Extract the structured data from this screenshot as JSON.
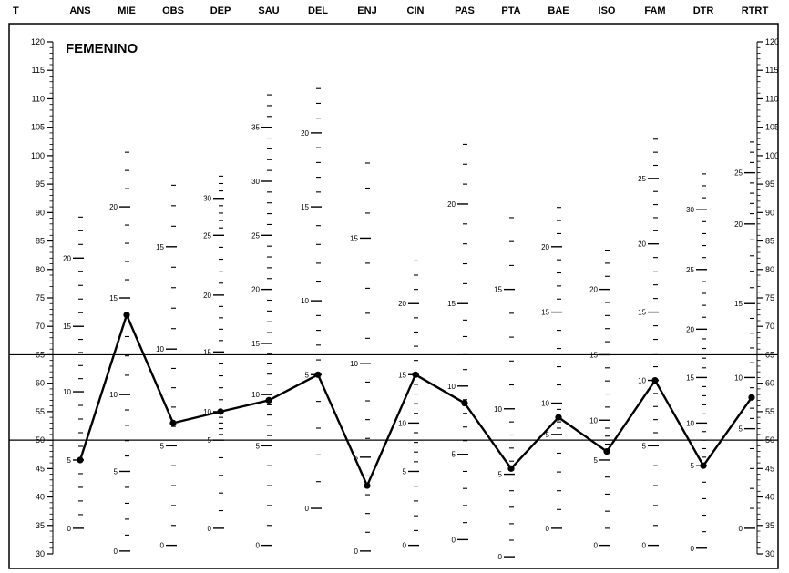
{
  "chart_data": {
    "type": "line",
    "title": "FEMENINO",
    "axis_label_left": "T",
    "axis_label_right": "T",
    "t_axis": {
      "min": 30,
      "max": 120,
      "labels": [
        30,
        35,
        40,
        45,
        50,
        55,
        60,
        65,
        70,
        75,
        80,
        85,
        90,
        95,
        100,
        105,
        110,
        115,
        120
      ]
    },
    "reference_lines": [
      50,
      65
    ],
    "categories": [
      "ANS",
      "MIE",
      "OBS",
      "DEP",
      "SAU",
      "DEL",
      "ENJ",
      "CIN",
      "PAS",
      "PTA",
      "BAE",
      "ISO",
      "FAM",
      "DTR",
      "RTR"
    ],
    "series": [
      {
        "values": [
          46.5,
          72,
          53,
          55,
          57,
          61.5,
          42,
          61.5,
          56.5,
          45,
          54,
          48,
          60.5,
          45.5,
          57.5
        ]
      }
    ],
    "raw_scales": [
      {
        "labels": [
          {
            "value": "0",
            "t": 34.5
          },
          {
            "value": "5",
            "t": 46.5
          },
          {
            "value": "10",
            "t": 58.5
          },
          {
            "value": "15",
            "t": 70
          },
          {
            "value": "20",
            "t": 82
          }
        ]
      },
      {
        "labels": [
          {
            "value": "0",
            "t": 30.5
          },
          {
            "value": "5",
            "t": 44.5
          },
          {
            "value": "10",
            "t": 58
          },
          {
            "value": "15",
            "t": 75
          },
          {
            "value": "20",
            "t": 91
          }
        ]
      },
      {
        "labels": [
          {
            "value": "0",
            "t": 31.5
          },
          {
            "value": "5",
            "t": 49
          },
          {
            "value": "10",
            "t": 66
          },
          {
            "value": "15",
            "t": 84
          }
        ]
      },
      {
        "labels": [
          {
            "value": "0",
            "t": 34.5
          },
          {
            "value": "5",
            "t": 50
          },
          {
            "value": "10",
            "t": 55
          },
          {
            "value": "15",
            "t": 65.5
          },
          {
            "value": "20",
            "t": 75.5
          },
          {
            "value": "25",
            "t": 86
          },
          {
            "value": "30",
            "t": 92.5
          }
        ]
      },
      {
        "labels": [
          {
            "value": "0",
            "t": 31.5
          },
          {
            "value": "5",
            "t": 49
          },
          {
            "value": "10",
            "t": 58
          },
          {
            "value": "15",
            "t": 67
          },
          {
            "value": "20",
            "t": 76.5
          },
          {
            "value": "25",
            "t": 86
          },
          {
            "value": "30",
            "t": 95.5
          },
          {
            "value": "35",
            "t": 105
          }
        ]
      },
      {
        "labels": [
          {
            "value": "0",
            "t": 38
          },
          {
            "value": "5",
            "t": 61.5
          },
          {
            "value": "10",
            "t": 74.5
          },
          {
            "value": "15",
            "t": 91
          },
          {
            "value": "20",
            "t": 104
          }
        ]
      },
      {
        "labels": [
          {
            "value": "0",
            "t": 30.5
          },
          {
            "value": "5",
            "t": 47
          },
          {
            "value": "10",
            "t": 63.5
          },
          {
            "value": "15",
            "t": 85.5
          }
        ]
      },
      {
        "labels": [
          {
            "value": "0",
            "t": 31.5
          },
          {
            "value": "5",
            "t": 44.5
          },
          {
            "value": "10",
            "t": 53
          },
          {
            "value": "15",
            "t": 61.5
          },
          {
            "value": "20",
            "t": 74
          }
        ]
      },
      {
        "labels": [
          {
            "value": "0",
            "t": 32.5
          },
          {
            "value": "5",
            "t": 47.5
          },
          {
            "value": "10",
            "t": 59.5
          },
          {
            "value": "15",
            "t": 74
          },
          {
            "value": "20",
            "t": 91.5
          }
        ]
      },
      {
        "labels": [
          {
            "value": "0",
            "t": 29.5
          },
          {
            "value": "5",
            "t": 44
          },
          {
            "value": "10",
            "t": 55.5
          },
          {
            "value": "15",
            "t": 76.5
          }
        ]
      },
      {
        "labels": [
          {
            "value": "0",
            "t": 34.5
          },
          {
            "value": "5",
            "t": 51
          },
          {
            "value": "10",
            "t": 56.5
          },
          {
            "value": "15",
            "t": 72.5
          },
          {
            "value": "20",
            "t": 84
          }
        ]
      },
      {
        "labels": [
          {
            "value": "0",
            "t": 31.5
          },
          {
            "value": "5",
            "t": 46.5
          },
          {
            "value": "10",
            "t": 53.5
          },
          {
            "value": "15",
            "t": 65
          },
          {
            "value": "20",
            "t": 76.5
          }
        ]
      },
      {
        "labels": [
          {
            "value": "0",
            "t": 31.5
          },
          {
            "value": "5",
            "t": 49
          },
          {
            "value": "10",
            "t": 60.5
          },
          {
            "value": "15",
            "t": 72.5
          },
          {
            "value": "20",
            "t": 84.5
          },
          {
            "value": "25",
            "t": 96
          }
        ]
      },
      {
        "labels": [
          {
            "value": "0",
            "t": 31
          },
          {
            "value": "5",
            "t": 45.5
          },
          {
            "value": "10",
            "t": 53
          },
          {
            "value": "15",
            "t": 61
          },
          {
            "value": "20",
            "t": 69.5
          },
          {
            "value": "25",
            "t": 80
          },
          {
            "value": "30",
            "t": 90.5
          }
        ]
      },
      {
        "labels": [
          {
            "value": "0",
            "t": 34.5
          },
          {
            "value": "5",
            "t": 52
          },
          {
            "value": "10",
            "t": 61
          },
          {
            "value": "15",
            "t": 74
          },
          {
            "value": "20",
            "t": 88
          },
          {
            "value": "25",
            "t": 97
          }
        ]
      }
    ]
  }
}
